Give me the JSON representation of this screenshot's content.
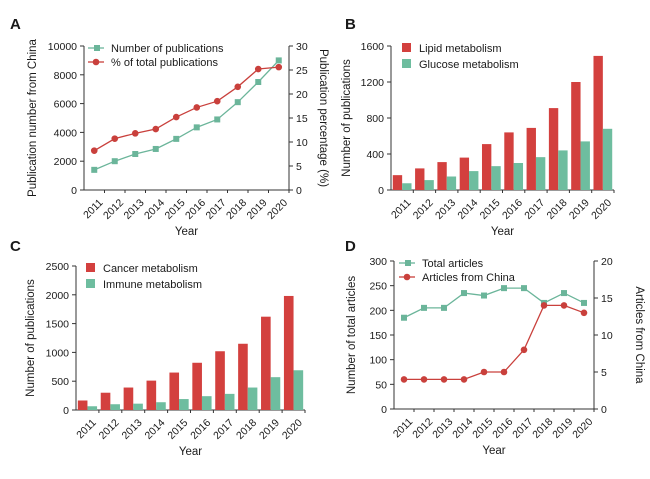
{
  "colors": {
    "red": "#c9403c",
    "green": "#6bb59a",
    "redBar": "#d3403e",
    "greenBar": "#6ebd9f",
    "axis": "#333333"
  },
  "chart_data": [
    {
      "panel": "A",
      "type": "line",
      "x": [
        "2011",
        "2012",
        "2013",
        "2014",
        "2015",
        "2016",
        "2017",
        "2018",
        "2019",
        "2020"
      ],
      "xlabel": "Year",
      "ylabel": "Publication number from China",
      "ylabel_right": "Publication percentage (%)",
      "ylim": [
        0,
        10000
      ],
      "ylim_right": [
        0,
        30
      ],
      "yticks": [
        "0",
        "2000",
        "4000",
        "6000",
        "8000",
        "10000"
      ],
      "yticks_right": [
        "0",
        "5",
        "10",
        "15",
        "20",
        "25",
        "30"
      ],
      "series": [
        {
          "name": "Number of publications",
          "axis": "left",
          "color": "#6bb59a",
          "marker": "square",
          "values": [
            1400,
            2000,
            2500,
            2850,
            3550,
            4350,
            4900,
            6100,
            7500,
            9000
          ]
        },
        {
          "name": "% of total publications",
          "axis": "right",
          "color": "#c9403c",
          "marker": "circle",
          "values": [
            8.2,
            10.7,
            11.8,
            12.7,
            15.2,
            17.2,
            18.5,
            21.5,
            25.2,
            25.6
          ]
        }
      ],
      "legend": "top-left"
    },
    {
      "panel": "B",
      "type": "bar",
      "categories": [
        "2011",
        "2012",
        "2013",
        "2014",
        "2015",
        "2016",
        "2017",
        "2018",
        "2019",
        "2020"
      ],
      "xlabel": "Year",
      "ylabel": "Number of publications",
      "ylim": [
        0,
        1600
      ],
      "yticks": [
        "0",
        "400",
        "800",
        "1200",
        "1600"
      ],
      "series": [
        {
          "name": "Lipid metabolism",
          "color": "#d3403e",
          "values": [
            165,
            240,
            310,
            360,
            510,
            640,
            690,
            910,
            1200,
            1490
          ]
        },
        {
          "name": "Glucose metabolism",
          "color": "#6ebd9f",
          "values": [
            75,
            110,
            150,
            210,
            265,
            300,
            365,
            440,
            540,
            680
          ]
        }
      ],
      "legend": "top-left"
    },
    {
      "panel": "C",
      "type": "bar",
      "categories": [
        "2011",
        "2012",
        "2013",
        "2014",
        "2015",
        "2016",
        "2017",
        "2018",
        "2019",
        "2020"
      ],
      "xlabel": "Year",
      "ylabel": "Number of publications",
      "ylim": [
        0,
        2500
      ],
      "yticks": [
        "0",
        "500",
        "1000",
        "1500",
        "2000",
        "2500"
      ],
      "series": [
        {
          "name": "Cancer metabolism",
          "color": "#d3403e",
          "values": [
            165,
            300,
            390,
            510,
            650,
            820,
            1020,
            1150,
            1620,
            1980
          ]
        },
        {
          "name": "Immune metabolism",
          "color": "#6ebd9f",
          "values": [
            65,
            100,
            110,
            135,
            190,
            240,
            280,
            390,
            570,
            690
          ]
        }
      ],
      "legend": "top-left"
    },
    {
      "panel": "D",
      "type": "line",
      "x": [
        "2011",
        "2012",
        "2013",
        "2014",
        "2015",
        "2016",
        "2017",
        "2018",
        "2019",
        "2020"
      ],
      "xlabel": "Year",
      "ylabel": "Number of total articles",
      "ylabel_right": "Articles from China",
      "ylim": [
        0,
        300
      ],
      "ylim_right": [
        0,
        20
      ],
      "yticks": [
        "0",
        "50",
        "100",
        "150",
        "200",
        "250",
        "300"
      ],
      "yticks_right": [
        "0",
        "5",
        "10",
        "15",
        "20"
      ],
      "series": [
        {
          "name": "Total articles",
          "axis": "left",
          "color": "#6bb59a",
          "marker": "square",
          "values": [
            185,
            205,
            205,
            235,
            230,
            245,
            245,
            215,
            235,
            215
          ]
        },
        {
          "name": "Articles from China",
          "axis": "right",
          "color": "#c9403c",
          "marker": "circle",
          "values": [
            4,
            4,
            4,
            4,
            5,
            5,
            8,
            14,
            14,
            13
          ]
        }
      ],
      "legend": "top-left"
    }
  ]
}
